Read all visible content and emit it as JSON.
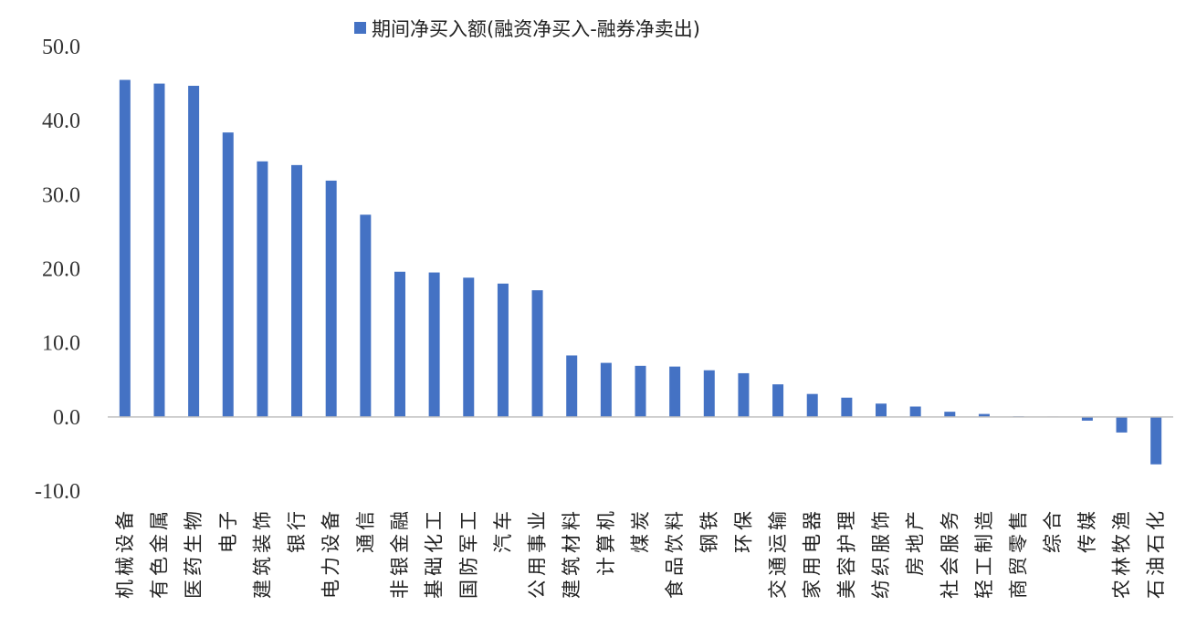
{
  "chart_data": {
    "type": "bar",
    "title": "",
    "xlabel": "",
    "ylabel": "",
    "legend": {
      "placement": "top-center",
      "entries": [
        "期间净买入额(融资净买入-融券净卖出)"
      ]
    },
    "ylim": [
      -10,
      50
    ],
    "yticks": [
      "50.0",
      "40.0",
      "30.0",
      "20.0",
      "10.0",
      "0.0",
      "-10.0"
    ],
    "grid": false,
    "colors": {
      "bar": "#4472C4",
      "axis": "#BFBFBF"
    },
    "categories": [
      "机械设备",
      "有色金属",
      "医药生物",
      "电子",
      "建筑装饰",
      "银行",
      "电力设备",
      "通信",
      "非银金融",
      "基础化工",
      "国防军工",
      "汽车",
      "公用事业",
      "建筑材料",
      "计算机",
      "煤炭",
      "食品饮料",
      "钢铁",
      "环保",
      "交通运输",
      "家用电器",
      "美容护理",
      "纺织服饰",
      "房地产",
      "社会服务",
      "轻工制造",
      "商贸零售",
      "综合",
      "传媒",
      "农林牧渔",
      "石油石化"
    ],
    "series": [
      {
        "name": "期间净买入额(融资净买入-融券净卖出)",
        "values": [
          45.5,
          45.0,
          44.7,
          38.4,
          34.5,
          34.0,
          31.9,
          27.3,
          19.6,
          19.5,
          18.8,
          18.0,
          17.1,
          8.3,
          7.3,
          6.9,
          6.8,
          6.3,
          5.9,
          4.4,
          3.1,
          2.6,
          1.8,
          1.4,
          0.7,
          0.4,
          0.1,
          0.05,
          -0.5,
          -2.1,
          -6.4
        ]
      }
    ]
  }
}
